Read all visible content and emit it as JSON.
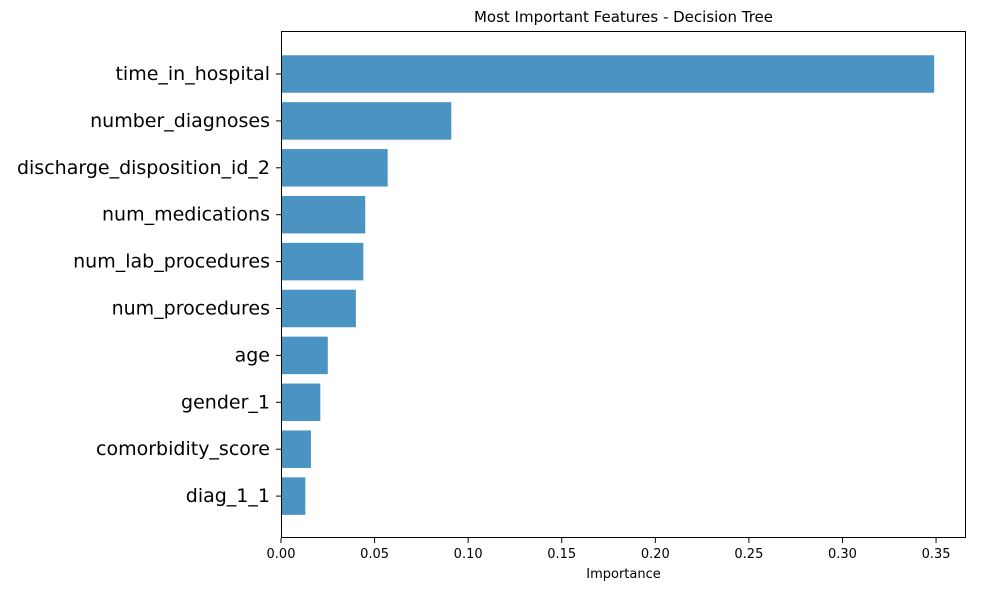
{
  "chart_data": {
    "type": "bar",
    "orientation": "horizontal",
    "title": "Most Important Features - Decision Tree",
    "xlabel": "Importance",
    "ylabel": "",
    "xlim": [
      0,
      0.366
    ],
    "xticks": [
      0.0,
      0.05,
      0.1,
      0.15,
      0.2,
      0.25,
      0.3,
      0.35
    ],
    "xtick_labels": [
      "0.00",
      "0.05",
      "0.10",
      "0.15",
      "0.20",
      "0.25",
      "0.30",
      "0.35"
    ],
    "categories": [
      "time_in_hospital",
      "number_diagnoses",
      "discharge_disposition_id_2",
      "num_medications",
      "num_lab_procedures",
      "num_procedures",
      "age",
      "gender_1",
      "comorbidity_score",
      "diag_1_1"
    ],
    "values": [
      0.349,
      0.091,
      0.057,
      0.045,
      0.044,
      0.04,
      0.025,
      0.021,
      0.016,
      0.013
    ],
    "bar_color": "#4b93c3",
    "grid": false,
    "legend": "none"
  }
}
